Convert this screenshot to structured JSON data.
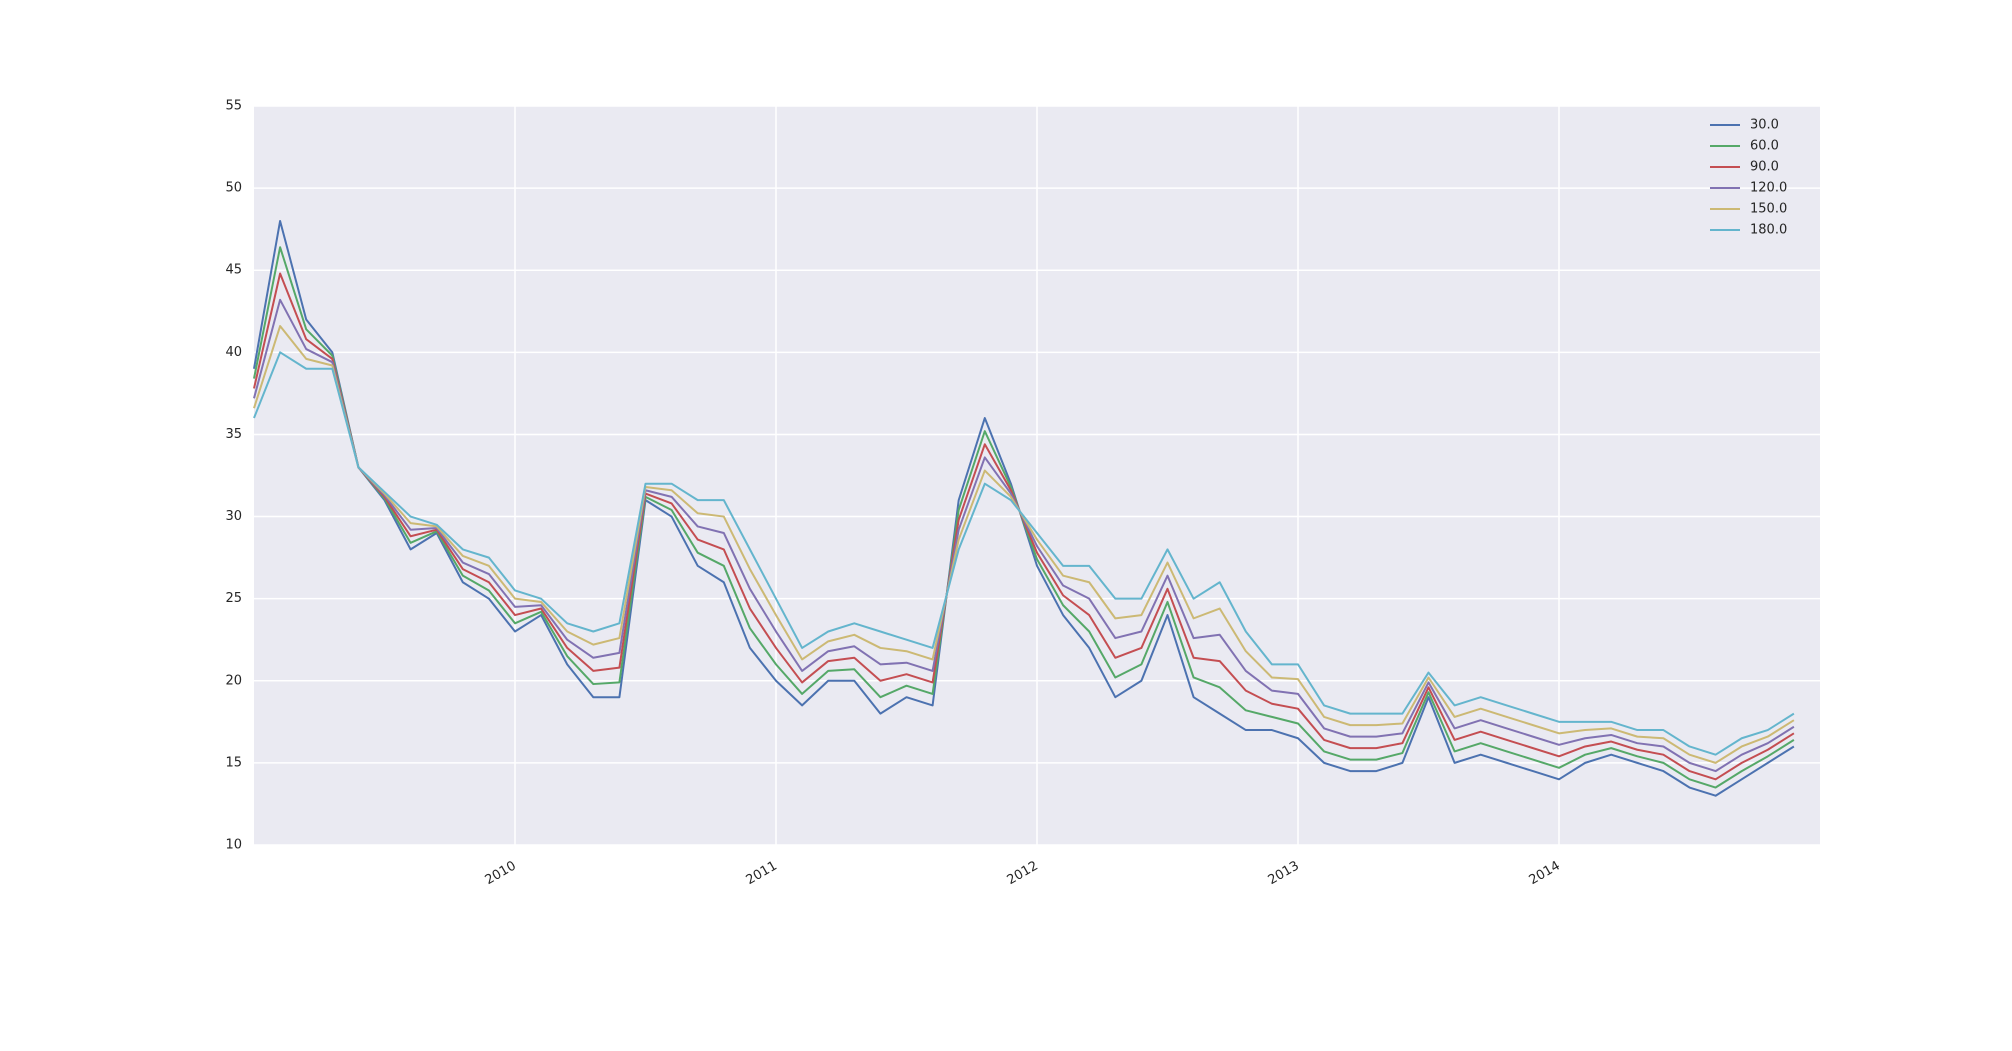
{
  "chart_data": {
    "type": "line",
    "x": [
      2009.0,
      2009.1,
      2009.2,
      2009.3,
      2009.4,
      2009.5,
      2009.6,
      2009.7,
      2009.8,
      2009.9,
      2010.0,
      2010.1,
      2010.2,
      2010.3,
      2010.4,
      2010.5,
      2010.6,
      2010.7,
      2010.8,
      2010.9,
      2011.0,
      2011.1,
      2011.2,
      2011.3,
      2011.4,
      2011.5,
      2011.6,
      2011.7,
      2011.8,
      2011.9,
      2012.0,
      2012.1,
      2012.2,
      2012.3,
      2012.4,
      2012.5,
      2012.6,
      2012.7,
      2012.8,
      2012.9,
      2013.0,
      2013.1,
      2013.2,
      2013.3,
      2013.4,
      2013.5,
      2013.6,
      2013.7,
      2013.8,
      2013.9,
      2014.0,
      2014.1,
      2014.2,
      2014.3,
      2014.4,
      2014.5,
      2014.6,
      2014.7,
      2014.8,
      2014.9
    ],
    "series": [
      {
        "name": "30.0",
        "color": "#4c72b0",
        "values": [
          39,
          48,
          42,
          40,
          33,
          31,
          28,
          29,
          26,
          25,
          23,
          24,
          21,
          19,
          19,
          31,
          30,
          27,
          26,
          22,
          20,
          18.5,
          20,
          20,
          18,
          19,
          18.5,
          31,
          36,
          32,
          27,
          24,
          22,
          19,
          20,
          24,
          19,
          18,
          17,
          17,
          16.5,
          15,
          14.5,
          14.5,
          15,
          19,
          15,
          15.5,
          15,
          14.5,
          14,
          15,
          15.5,
          15,
          14.5,
          13.5,
          13,
          14,
          15,
          16
        ]
      },
      {
        "name": "60.0",
        "color": "#55a868",
        "values": [
          38.4,
          46.4,
          41.4,
          39.8,
          33,
          31.1,
          28.4,
          29.1,
          26.4,
          25.5,
          23.5,
          24.2,
          21.5,
          19.8,
          19.9,
          31.2,
          30.4,
          27.8,
          27,
          23.2,
          21,
          19.2,
          20.6,
          20.7,
          19,
          19.7,
          19.2,
          30.4,
          35.2,
          31.8,
          27.4,
          24.6,
          23,
          20.2,
          21,
          24.8,
          20.2,
          19.6,
          18.2,
          17.8,
          17.4,
          15.7,
          15.2,
          15.2,
          15.6,
          19.3,
          15.7,
          16.2,
          15.7,
          15.2,
          14.7,
          15.5,
          15.9,
          15.4,
          15,
          14,
          13.5,
          14.5,
          15.4,
          16.4
        ]
      },
      {
        "name": "90.0",
        "color": "#c44e52",
        "values": [
          37.8,
          44.8,
          40.8,
          39.6,
          33,
          31.2,
          28.8,
          29.2,
          26.8,
          26,
          24,
          24.4,
          22,
          20.6,
          20.8,
          31.4,
          30.8,
          28.6,
          28,
          24.4,
          22,
          19.9,
          21.2,
          21.4,
          20,
          20.4,
          19.9,
          29.8,
          34.4,
          31.6,
          27.8,
          25.2,
          24,
          21.4,
          22,
          25.6,
          21.4,
          21.2,
          19.4,
          18.6,
          18.3,
          16.4,
          15.9,
          15.9,
          16.2,
          19.6,
          16.4,
          16.9,
          16.4,
          15.9,
          15.4,
          16,
          16.3,
          15.8,
          15.5,
          14.5,
          14,
          15,
          15.8,
          16.8
        ]
      },
      {
        "name": "120.0",
        "color": "#8172b2",
        "values": [
          37.2,
          43.2,
          40.2,
          39.4,
          33,
          31.3,
          29.2,
          29.3,
          27.2,
          26.5,
          24.5,
          24.6,
          22.5,
          21.4,
          21.7,
          31.6,
          31.2,
          29.4,
          29,
          25.6,
          23,
          20.6,
          21.8,
          22.1,
          21,
          21.1,
          20.6,
          29.2,
          33.6,
          31.4,
          28.2,
          25.8,
          25,
          22.6,
          23,
          26.4,
          22.6,
          22.8,
          20.6,
          19.4,
          19.2,
          17.1,
          16.6,
          16.6,
          16.8,
          19.9,
          17.1,
          17.6,
          17.1,
          16.6,
          16.1,
          16.5,
          16.7,
          16.2,
          16,
          15,
          14.5,
          15.5,
          16.2,
          17.2
        ]
      },
      {
        "name": "150.0",
        "color": "#ccb974",
        "values": [
          36.6,
          41.6,
          39.6,
          39.2,
          33,
          31.4,
          29.6,
          29.4,
          27.6,
          27,
          25,
          24.8,
          23,
          22.2,
          22.6,
          31.8,
          31.6,
          30.2,
          30,
          26.8,
          24,
          21.3,
          22.4,
          22.8,
          22,
          21.8,
          21.3,
          28.6,
          32.8,
          31.2,
          28.6,
          26.4,
          26,
          23.8,
          24,
          27.2,
          23.8,
          24.4,
          21.8,
          20.2,
          20.1,
          17.8,
          17.3,
          17.3,
          17.4,
          20.2,
          17.8,
          18.3,
          17.8,
          17.3,
          16.8,
          17,
          17.1,
          16.6,
          16.5,
          15.5,
          15,
          16,
          16.6,
          17.6
        ]
      },
      {
        "name": "180.0",
        "color": "#64b5cd",
        "values": [
          36,
          40,
          39,
          39,
          33,
          31.5,
          30,
          29.5,
          28,
          27.5,
          25.5,
          25,
          23.5,
          23,
          23.5,
          32,
          32,
          31,
          31,
          28,
          25,
          22,
          23,
          23.5,
          23,
          22.5,
          22,
          28,
          32,
          31,
          29,
          27,
          27,
          25,
          25,
          28,
          25,
          26,
          23,
          21,
          21,
          18.5,
          18,
          18,
          18,
          20.5,
          18.5,
          19,
          18.5,
          18,
          17.5,
          17.5,
          17.5,
          17,
          17,
          16,
          15.5,
          16.5,
          17,
          18
        ]
      }
    ],
    "xlim": [
      2009,
      2015
    ],
    "xticks": [
      2010,
      2011,
      2012,
      2013,
      2014
    ],
    "ylim": [
      10,
      55
    ],
    "yticks": [
      10,
      15,
      20,
      25,
      30,
      35,
      40,
      45,
      50,
      55
    ],
    "grid": true,
    "legend": "upper right"
  }
}
